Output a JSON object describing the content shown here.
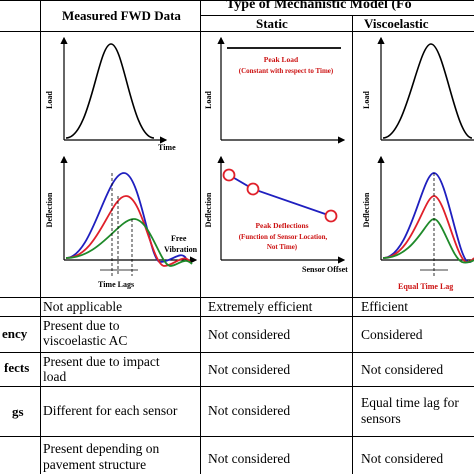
{
  "header": {
    "group_title": "Type of Mechanistic Model (Fo",
    "col_measured": "Measured FWD Data",
    "col_static": "Static",
    "col_viscoelastic": "Viscoelastic"
  },
  "plots": {
    "load_axis": "Load",
    "time_axis": "Time",
    "deflection_axis": "Deflection",
    "free_vibration_line1": "Free",
    "free_vibration_line2": "Vibration",
    "time_lags": "Time Lags",
    "peak_load_line1": "Peak Load",
    "peak_load_line2": "(Constant with respect to Time)",
    "peak_defl_line1": "Peak Deflections",
    "peak_defl_line2": "(Function of Sensor Location,",
    "peak_defl_line3": "Not Time)",
    "sensor_offset": "Sensor Offset",
    "equal_time_lag": "Equal Time Lag"
  },
  "rows": [
    {
      "label": "",
      "measured": [
        "Not applicable"
      ],
      "static": [
        "Extremely efficient"
      ],
      "viscoelastic": [
        "Efficient"
      ]
    },
    {
      "label": "ency",
      "measured": [
        "Present due to",
        "viscoelastic AC"
      ],
      "static": [
        "Not considered"
      ],
      "viscoelastic": [
        "Considered"
      ]
    },
    {
      "label": "fects",
      "measured": [
        "Present due to impact",
        "load"
      ],
      "static": [
        "Not considered"
      ],
      "viscoelastic": [
        "Not considered"
      ]
    },
    {
      "label": "gs",
      "measured": [
        "Different for each sensor"
      ],
      "static": [
        "Not considered"
      ],
      "viscoelastic": [
        "Equal time lag for",
        "sensors"
      ]
    },
    {
      "label": "",
      "measured": [
        "Present depending on",
        "pavement structure"
      ],
      "static": [
        "Not considered"
      ],
      "viscoelastic": [
        "Not considered"
      ]
    }
  ],
  "colors": {
    "blue": "#1f1fbf",
    "red": "#e0202a",
    "green": "#1f8a2a",
    "annotation_red": "#cc1111"
  }
}
